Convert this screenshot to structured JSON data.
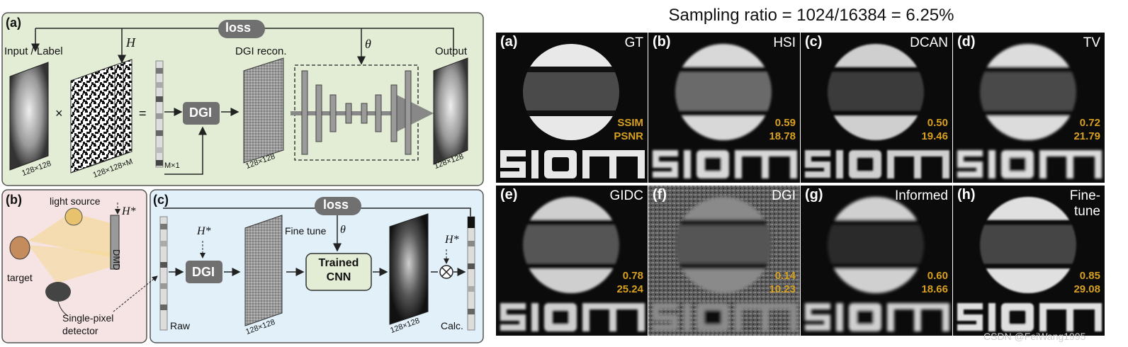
{
  "panel_a": {
    "tag": "(a)",
    "loss": "loss",
    "H": "H",
    "theta": "θ",
    "input_label": "Input / Label",
    "times": "×",
    "equals": "=",
    "dgi": "DGI",
    "dgi_recon": "DGI recon.",
    "output": "Output",
    "size_128": "128×128",
    "size_128M": "128×128×M",
    "size_M1": "M×1",
    "size_recon": "128×128",
    "size_out": "128×128",
    "bg_color": "#e3ecd5"
  },
  "panel_b": {
    "tag": "(b)",
    "light_source": "light source",
    "H_star": "H*",
    "dmd": "DMD",
    "target": "target",
    "detector": "Single-pixel\ndetector",
    "bg_color": "#f6e4e4"
  },
  "panel_c": {
    "tag": "(c)",
    "loss": "loss",
    "fine_tune": "Fine tune",
    "theta": "θ",
    "H_star": "H*",
    "dgi": "DGI",
    "trained_cnn": "Trained\nCNN",
    "raw": "Raw",
    "calc": "Calc.",
    "size_recon": "128×128",
    "size_face": "128×128",
    "bg_color": "#e2f0fa"
  },
  "results": {
    "title": "Sampling ratio = 1024/16384 = 6.25%",
    "metric_color": "#d8a020",
    "tiles": [
      {
        "tag": "(a)",
        "method": "GT",
        "ssim": "SSIM",
        "psnr": "PSNR"
      },
      {
        "tag": "(b)",
        "method": "HSI",
        "ssim": "0.59",
        "psnr": "18.78"
      },
      {
        "tag": "(c)",
        "method": "DCAN",
        "ssim": "0.50",
        "psnr": "19.46"
      },
      {
        "tag": "(d)",
        "method": "TV",
        "ssim": "0.72",
        "psnr": "21.79"
      },
      {
        "tag": "(e)",
        "method": "GIDC",
        "ssim": "0.78",
        "psnr": "25.24"
      },
      {
        "tag": "(f)",
        "method": "DGI",
        "ssim": "0.14",
        "psnr": "10.23"
      },
      {
        "tag": "(g)",
        "method": "Informed",
        "ssim": "0.60",
        "psnr": "18.66"
      },
      {
        "tag": "(h)",
        "method": "Fine-\ntune",
        "ssim": "0.85",
        "psnr": "29.08"
      }
    ],
    "watermark": "CSDN @FeiWang1995"
  }
}
